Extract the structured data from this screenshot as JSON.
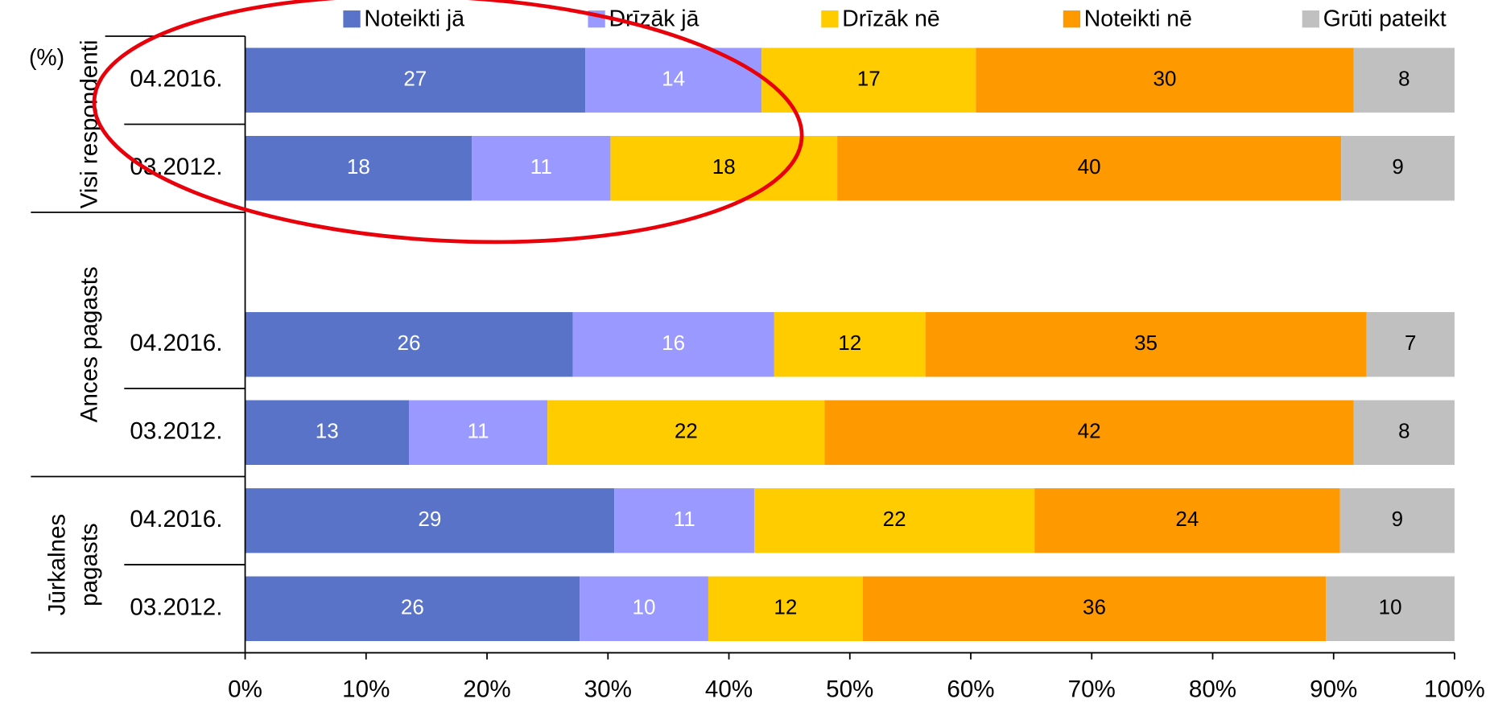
{
  "chart_data": {
    "type": "bar",
    "orientation": "horizontal",
    "stacking": "percent",
    "axis_unit_label": "(%)",
    "groups": [
      {
        "label": [
          "Visi respondenti"
        ],
        "categories": [
          "04.2016.",
          "03.2012."
        ]
      },
      {
        "label": [
          "Ances pagasts"
        ],
        "categories": [
          null,
          "04.2016.",
          "03.2012."
        ]
      },
      {
        "label": [
          "Jūrkalnes",
          "pagasts"
        ],
        "categories": [
          "04.2016.",
          "03.2012."
        ]
      }
    ],
    "series": [
      {
        "name": "Noteikti jā",
        "color": "#5873c8",
        "label_color": "#ffffff",
        "values": [
          27,
          18,
          null,
          26,
          13,
          29,
          26
        ]
      },
      {
        "name": "Drīzāk jā",
        "color": "#9999ff",
        "label_color": "#ffffff",
        "values": [
          14,
          11,
          null,
          16,
          11,
          11,
          10
        ]
      },
      {
        "name": "Drīzāk nē",
        "color": "#ffcc00",
        "label_color": "#000000",
        "values": [
          17,
          18,
          null,
          12,
          22,
          22,
          12
        ]
      },
      {
        "name": "Noteikti nē",
        "color": "#ff9900",
        "label_color": "#000000",
        "values": [
          30,
          40,
          null,
          35,
          42,
          24,
          36
        ]
      },
      {
        "name": "Grūti pateikt",
        "color": "#c0c0c0",
        "label_color": "#000000",
        "values": [
          8,
          9,
          null,
          7,
          8,
          9,
          10
        ]
      }
    ],
    "xlim": [
      0,
      100
    ],
    "xticks": [
      {
        "value": 0,
        "label": "0%"
      },
      {
        "value": 10,
        "label": "10%"
      },
      {
        "value": 20,
        "label": "20%"
      },
      {
        "value": 30,
        "label": "30%"
      },
      {
        "value": 40,
        "label": "40%"
      },
      {
        "value": 50,
        "label": "50%"
      },
      {
        "value": 60,
        "label": "60%"
      },
      {
        "value": 70,
        "label": "70%"
      },
      {
        "value": 80,
        "label": "80%"
      },
      {
        "value": 90,
        "label": "90%"
      },
      {
        "value": 100,
        "label": "100%"
      }
    ],
    "legend": "top"
  }
}
